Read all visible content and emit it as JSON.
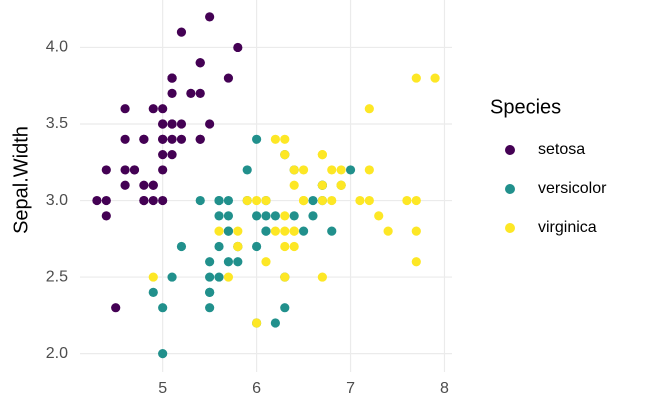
{
  "chart_data": {
    "type": "scatter",
    "y_label": "Sepal.Width",
    "legend_title": "Species",
    "legend_position": "right",
    "grid": true,
    "xlim": [
      4.12,
      8.08
    ],
    "xticks": [
      5,
      6,
      7,
      8
    ],
    "ylim": [
      1.88,
      4.31
    ],
    "yticks": [
      {
        "value": 2,
        "label": "2.0"
      },
      {
        "value": 2.5,
        "label": "2.5"
      },
      {
        "value": 3,
        "label": "3.0"
      },
      {
        "value": 3.5,
        "label": "3.5"
      },
      {
        "value": 4,
        "label": "4.0"
      }
    ],
    "series": [
      {
        "name": "setosa",
        "color": "#440154",
        "x": [
          5.1,
          4.9,
          4.7,
          4.6,
          5.0,
          5.4,
          4.6,
          5.0,
          4.4,
          4.9,
          5.4,
          4.8,
          4.8,
          4.3,
          5.8,
          5.4,
          5.1,
          5.7,
          5.1,
          5.4,
          5.1,
          4.6,
          5.1,
          4.8,
          5.0,
          5.0,
          5.2,
          5.2,
          4.7,
          4.8,
          5.4,
          5.2,
          5.5,
          4.9,
          5.0,
          5.5,
          4.9,
          4.4,
          5.1,
          5.0,
          4.5,
          4.4,
          5.0,
          5.1,
          4.8,
          5.1,
          4.6,
          5.3,
          5.0
        ],
        "values": [
          3.5,
          3.0,
          3.2,
          3.1,
          3.6,
          3.9,
          3.4,
          3.4,
          2.9,
          3.1,
          3.7,
          3.4,
          3.0,
          3.0,
          4.0,
          3.9,
          3.5,
          3.8,
          3.8,
          3.4,
          3.7,
          3.6,
          3.3,
          3.4,
          3.0,
          3.4,
          3.5,
          3.4,
          3.2,
          3.1,
          3.4,
          4.1,
          4.2,
          3.1,
          3.2,
          3.5,
          3.6,
          3.0,
          3.4,
          3.5,
          2.3,
          3.2,
          3.5,
          3.8,
          3.0,
          3.8,
          3.2,
          3.7,
          3.3
        ]
      },
      {
        "name": "versicolor",
        "color": "#21908C",
        "x": [
          7.0,
          6.4,
          6.9,
          5.5,
          6.5,
          5.7,
          6.3,
          4.9,
          6.6,
          5.2,
          5.0,
          5.9,
          6.0,
          6.1,
          5.6,
          6.7,
          5.6,
          5.8,
          6.2,
          5.6,
          5.9,
          6.1,
          6.3,
          6.1,
          6.4,
          6.6,
          6.8,
          6.7,
          6.0,
          5.7,
          5.5,
          5.5,
          5.8,
          6.0,
          5.4,
          6.0,
          6.7,
          6.3,
          5.6,
          5.5,
          5.5,
          6.1,
          5.8,
          5.0,
          5.6,
          5.7,
          5.7,
          6.2,
          5.1,
          5.7
        ],
        "values": [
          3.2,
          3.2,
          3.1,
          2.3,
          2.8,
          2.8,
          3.3,
          2.4,
          2.9,
          2.7,
          2.0,
          3.0,
          2.2,
          2.9,
          2.9,
          3.1,
          3.0,
          2.7,
          2.2,
          2.5,
          3.2,
          2.8,
          2.5,
          2.8,
          2.9,
          3.0,
          2.8,
          3.0,
          2.9,
          2.6,
          2.4,
          2.4,
          2.7,
          2.7,
          3.0,
          3.4,
          3.1,
          2.3,
          3.0,
          2.5,
          2.6,
          3.0,
          2.6,
          2.3,
          2.7,
          3.0,
          2.9,
          2.9,
          2.5,
          2.8
        ]
      },
      {
        "name": "virginica",
        "color": "#FDE725",
        "x": [
          6.3,
          5.8,
          7.1,
          6.3,
          6.5,
          7.6,
          4.9,
          7.3,
          6.7,
          7.2,
          6.5,
          6.4,
          6.8,
          5.7,
          5.8,
          6.4,
          6.5,
          7.7,
          7.7,
          6.0,
          6.9,
          5.6,
          7.7,
          6.3,
          6.7,
          7.2,
          6.2,
          6.1,
          6.4,
          7.2,
          7.4,
          7.9,
          6.4,
          6.3,
          6.1,
          7.7,
          6.3,
          6.4,
          6.0,
          6.9,
          6.7,
          6.9,
          5.8,
          6.8,
          6.7,
          6.7,
          6.3,
          6.5,
          6.2,
          5.9
        ],
        "values": [
          3.3,
          2.7,
          3.0,
          2.9,
          3.0,
          3.0,
          2.5,
          2.9,
          2.5,
          3.6,
          3.2,
          2.7,
          3.0,
          2.5,
          2.8,
          3.2,
          3.0,
          3.8,
          2.6,
          2.2,
          3.2,
          2.8,
          2.8,
          2.7,
          3.3,
          3.2,
          2.8,
          3.0,
          2.8,
          3.0,
          2.8,
          3.8,
          2.8,
          2.8,
          2.6,
          3.0,
          3.4,
          3.1,
          3.0,
          3.1,
          3.1,
          3.1,
          2.7,
          3.2,
          3.3,
          3.0,
          2.5,
          3.0,
          3.4,
          3.0
        ]
      }
    ]
  }
}
